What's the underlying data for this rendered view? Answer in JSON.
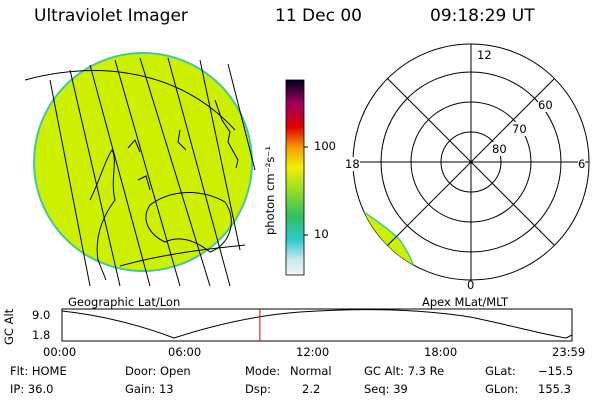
{
  "header": {
    "instrument": "Ultraviolet Imager",
    "date": "11 Dec 00",
    "time": "09:18:29 UT"
  },
  "panels": {
    "left_label": "Geographic Lat/Lon",
    "right_label": "Apex MLat/MLT"
  },
  "colorbar": {
    "unit_label": "photon cm⁻²s⁻¹",
    "ticks": [
      "100",
      "10"
    ]
  },
  "polar": {
    "mlt_labels": {
      "top": "12",
      "left": "18",
      "right": "6",
      "bottom": "0"
    },
    "lat_labels": [
      "60",
      "70",
      "80"
    ]
  },
  "orbit": {
    "axis_label": "GC Alt",
    "y_ticks": [
      "9.0",
      "1.8"
    ],
    "x_ticks": [
      "00:00",
      "06:00",
      "12:00",
      "18:00",
      "23:59"
    ],
    "current_time_fraction": 0.388
  },
  "status": {
    "col1": [
      "Flt: HOME",
      "IP: 36.0"
    ],
    "col2": [
      "Door: Open",
      "Gain: 13"
    ],
    "col3a": [
      "Mode:",
      "Dsp:"
    ],
    "col3b": [
      "Normal",
      "2.2"
    ],
    "col4": [
      "GC Alt: 7.3 Re",
      "Seq: 39"
    ],
    "col5a": [
      "GLat:",
      "GLon:"
    ],
    "col5b": [
      "−15.5",
      "155.3"
    ]
  },
  "colors": {
    "fill": "#ccf000",
    "edge": "#40c8a0"
  }
}
